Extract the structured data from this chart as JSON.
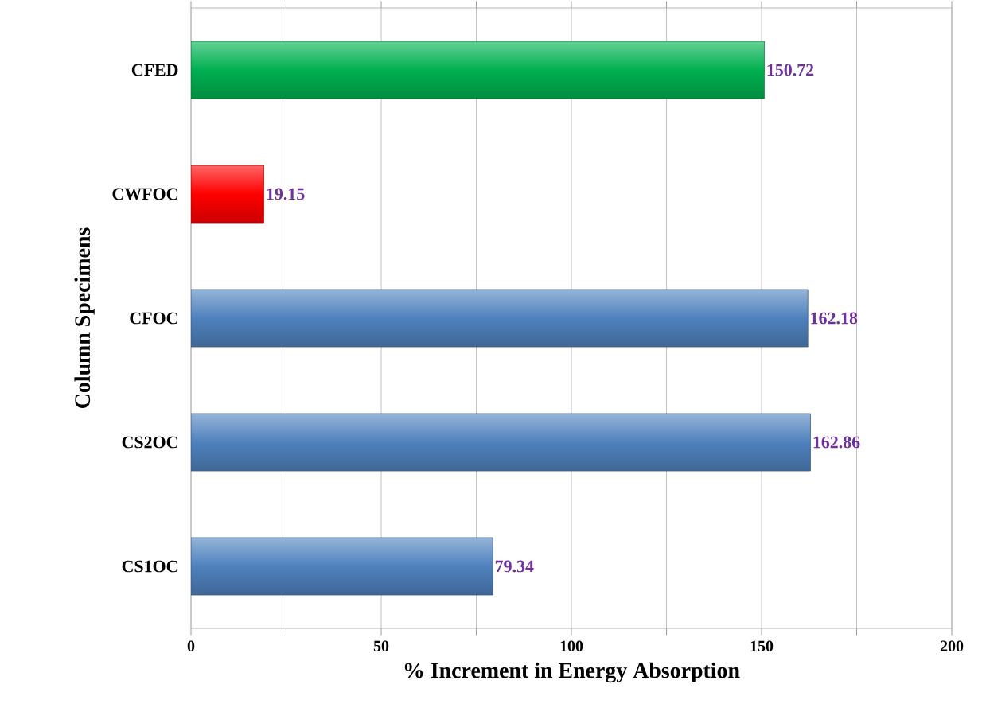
{
  "chart_data": {
    "type": "bar",
    "orientation": "horizontal",
    "xlabel": "% Increment in Energy Absorption",
    "ylabel": "Column Specimens",
    "categories": [
      "CFED",
      "CWFOC",
      "CFOC",
      "CS2OC",
      "CS1OC"
    ],
    "values": [
      150.72,
      19.15,
      162.18,
      162.86,
      79.34
    ],
    "colors": [
      "#00b050",
      "#ff0000",
      "#4f81bd",
      "#4f81bd",
      "#4f81bd"
    ],
    "xlim": [
      0,
      200
    ],
    "xticks": [
      0,
      {
        "value": 25,
        "label": null
      },
      50,
      {
        "value": 75,
        "label": null
      },
      100,
      {
        "value": 125,
        "label": null
      },
      150,
      {
        "value": 175,
        "label": null
      },
      200
    ],
    "grid": "x",
    "data_labels": true
  }
}
